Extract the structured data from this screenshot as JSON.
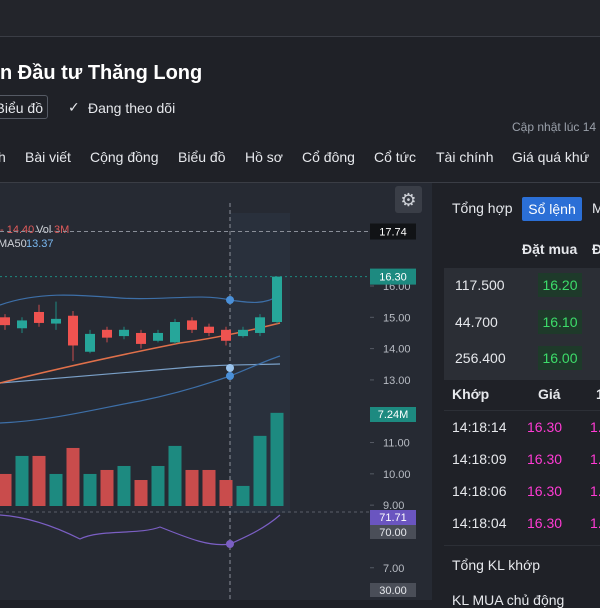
{
  "header": {
    "title": "n Đầu tư Thăng Long",
    "chart_button": "Biểu đồ",
    "follow": "Đang theo dõi",
    "updated": "Cập nhật lúc  14"
  },
  "nav": [
    "h",
    "Bài viết",
    "Cộng đồng",
    "Biểu đồ",
    "Hồ sơ",
    "Cổ đông",
    "Cổ tức",
    "Tài chính",
    "Giá quá khứ"
  ],
  "chart": {
    "type": "candlestick",
    "legend_price": "- 14.40",
    "legend_vol": "Vol",
    "legend_vol_value": "3M",
    "ma_label": "MA50",
    "ma_value": "13.37",
    "ylim": [
      5.97,
      19.29
    ],
    "vlim": [
      0,
      25.1
    ],
    "yticks": [
      {
        "value": 16,
        "label": "16.00"
      },
      {
        "value": 15,
        "label": "15.00"
      },
      {
        "value": 14,
        "label": "14.00"
      },
      {
        "value": 13,
        "label": "13.00"
      },
      {
        "value": 11,
        "label": "11.00"
      },
      {
        "value": 10,
        "label": "10.00"
      },
      {
        "value": 9,
        "label": "9.00"
      },
      {
        "value": 7,
        "label": "7.00"
      }
    ],
    "crosshair_price": {
      "value": 17.74,
      "label": "17.74"
    },
    "last_price": {
      "value": 16.3,
      "label": "16.30"
    },
    "volume_label": "7.24M",
    "rsi_value": "71.71",
    "rsi_upper": "70.00",
    "rsi_lower": "30.00",
    "up_color": "#1d8a80",
    "down_color": "#c94c4c",
    "open": [
      15.0,
      14.65,
      15.17,
      14.8,
      15.05,
      13.9,
      14.6,
      14.4,
      14.5,
      14.25,
      14.2,
      14.9,
      14.7,
      14.6,
      14.4,
      14.5,
      14.85
    ],
    "high": [
      15.1,
      15.0,
      15.4,
      15.5,
      15.2,
      14.6,
      14.7,
      14.7,
      14.6,
      14.6,
      14.95,
      15.0,
      14.8,
      14.7,
      14.7,
      15.1,
      16.3
    ],
    "low": [
      14.6,
      14.5,
      14.7,
      14.6,
      13.6,
      13.85,
      14.2,
      14.3,
      14.0,
      14.2,
      14.15,
      14.5,
      14.4,
      14.1,
      14.35,
      14.4,
      14.8
    ],
    "close": [
      14.75,
      14.9,
      14.82,
      14.95,
      14.1,
      14.47,
      14.35,
      14.6,
      14.15,
      14.5,
      14.85,
      14.6,
      14.5,
      14.25,
      14.6,
      15.0,
      16.3
    ],
    "volume": [
      2.49,
      3.89,
      3.89,
      2.49,
      4.51,
      2.49,
      2.8,
      3.11,
      2.02,
      3.11,
      4.67,
      2.8,
      2.8,
      2.02,
      1.56,
      5.45,
      7.24
    ]
  },
  "panel": {
    "tabs": [
      "Tổng hợp",
      "Sổ lệnh",
      "M"
    ],
    "bid_header": "Đặt mua",
    "ask_header_cut": "Đ",
    "bids": [
      {
        "volume": "117.500",
        "price": "16.20"
      },
      {
        "volume": "44.700",
        "price": "16.10"
      },
      {
        "volume": "256.400",
        "price": "16.00"
      }
    ],
    "match_headers": [
      "Khớp",
      "Giá",
      "1"
    ],
    "matches": [
      {
        "time": "14:18:14",
        "price": "16.30",
        "cut": "1."
      },
      {
        "time": "14:18:09",
        "price": "16.30",
        "cut": "1."
      },
      {
        "time": "14:18:06",
        "price": "16.30",
        "cut": "1."
      },
      {
        "time": "14:18:04",
        "price": "16.30",
        "cut": "1."
      }
    ],
    "total_label": "Tổng KL khớp",
    "buy_label": "KL MUA chủ động"
  }
}
